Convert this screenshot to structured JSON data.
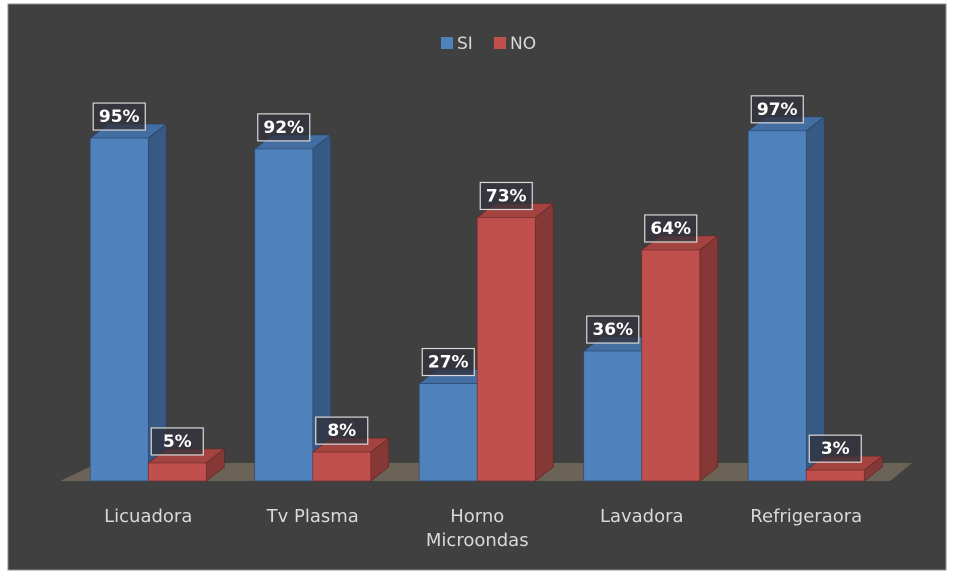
{
  "chart_data": {
    "type": "bar3d",
    "categories": [
      "Licuadora",
      "Tv Plasma",
      "Horno Microondas",
      "Lavadora",
      "Refrigeraora"
    ],
    "series": [
      {
        "name": "SI",
        "color": "#4f81bd",
        "values": [
          95,
          92,
          27,
          36,
          97
        ],
        "value_labels": [
          "95%",
          "92%",
          "27%",
          "36%",
          "97%"
        ]
      },
      {
        "name": "NO",
        "color": "#c0504d",
        "values": [
          5,
          8,
          73,
          64,
          3
        ],
        "value_labels": [
          "5%",
          "8%",
          "73%",
          "64%",
          "3%"
        ]
      }
    ],
    "ylim": [
      0,
      100
    ],
    "legend": "top"
  }
}
